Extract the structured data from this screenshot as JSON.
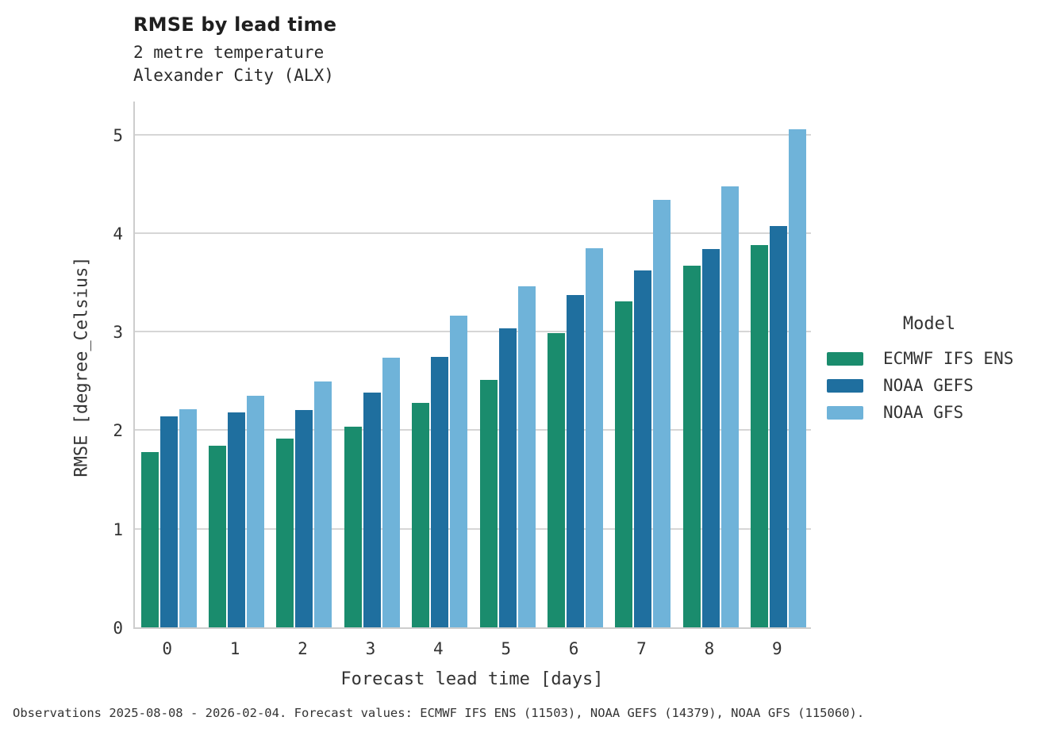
{
  "title": "RMSE by lead time",
  "subtitle": {
    "line1": "2 metre temperature",
    "line2": "Alexander City (ALX)"
  },
  "footer": "Observations 2025-08-08 - 2026-02-04. Forecast values: ECMWF IFS ENS (11503), NOAA GEFS (14379), NOAA GFS (115060).",
  "legend": {
    "title": "Model",
    "entries": [
      {
        "label": "ECMWF IFS ENS",
        "color": "#1a8c6d"
      },
      {
        "label": "NOAA GEFS",
        "color": "#1f6f9f"
      },
      {
        "label": "NOAA GFS",
        "color": "#6fb3d9"
      }
    ]
  },
  "chart_data": {
    "type": "bar",
    "title": "RMSE by lead time",
    "subtitle": [
      "2 metre temperature",
      "Alexander City (ALX)"
    ],
    "categories": [
      "0",
      "1",
      "2",
      "3",
      "4",
      "5",
      "6",
      "7",
      "8",
      "9"
    ],
    "series": [
      {
        "name": "ECMWF IFS ENS",
        "color": "#1a8c6d",
        "values": [
          1.78,
          1.85,
          1.92,
          2.04,
          2.28,
          2.52,
          2.99,
          3.32,
          3.68,
          3.89
        ]
      },
      {
        "name": "NOAA GEFS",
        "color": "#1f6f9f",
        "values": [
          2.15,
          2.19,
          2.21,
          2.39,
          2.75,
          3.04,
          3.38,
          3.63,
          3.85,
          4.08
        ]
      },
      {
        "name": "NOAA GFS",
        "color": "#6fb3d9",
        "values": [
          2.22,
          2.36,
          2.5,
          2.74,
          3.17,
          3.47,
          3.86,
          4.35,
          4.49,
          5.07
        ]
      }
    ],
    "xlabel": "Forecast lead time [days]",
    "ylabel": "RMSE [degree_Celsius]",
    "yticks": [
      0,
      1,
      2,
      3,
      4,
      5
    ],
    "ylim": [
      0,
      5.35
    ],
    "grid": true,
    "legend_position": "right",
    "legend_title": "Model"
  },
  "colors": {
    "grid": "#d6d6d6",
    "spine": "#cdcdcd",
    "text": "#333333"
  }
}
